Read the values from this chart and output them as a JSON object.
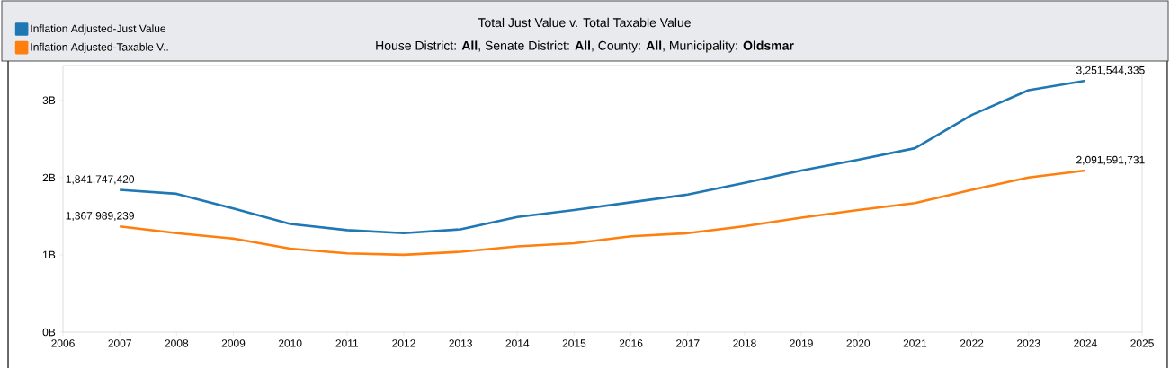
{
  "chart_data": {
    "type": "line",
    "title": "Total Just Value v. Total Taxable Value",
    "subtitle": "House District: **All**, Senate District: **All**, County: **All**, Municipality: **Oldsmar**",
    "x": [
      2007,
      2008,
      2009,
      2010,
      2011,
      2012,
      2013,
      2014,
      2015,
      2016,
      2017,
      2018,
      2019,
      2020,
      2021,
      2022,
      2023,
      2024
    ],
    "series": [
      {
        "name": "Inflation Adjusted-Just Value",
        "color": "#1f77b4",
        "values": [
          1841747420,
          1790000000,
          1600000000,
          1400000000,
          1320000000,
          1280000000,
          1330000000,
          1490000000,
          1580000000,
          1680000000,
          1780000000,
          1930000000,
          2090000000,
          2230000000,
          2380000000,
          2810000000,
          3130000000,
          3251544335
        ],
        "value_labels": [
          "1,841,747,420",
          null,
          null,
          null,
          null,
          null,
          null,
          null,
          null,
          null,
          null,
          null,
          null,
          null,
          null,
          null,
          null,
          "3,251,544,335"
        ]
      },
      {
        "name": "Inflation Adjusted-Taxable V..",
        "color": "#ff7f0e",
        "values": [
          1367989239,
          1280000000,
          1210000000,
          1080000000,
          1020000000,
          1000000000,
          1040000000,
          1110000000,
          1150000000,
          1240000000,
          1280000000,
          1370000000,
          1480000000,
          1580000000,
          1670000000,
          1840000000,
          2000000000,
          2091591731
        ],
        "value_labels": [
          "1,367,989,239",
          null,
          null,
          null,
          null,
          null,
          null,
          null,
          null,
          null,
          null,
          null,
          null,
          null,
          null,
          null,
          null,
          "2,091,591,731"
        ]
      }
    ],
    "xlim": [
      2006,
      2025
    ],
    "xticks": [
      2006,
      2007,
      2008,
      2009,
      2010,
      2011,
      2012,
      2013,
      2014,
      2015,
      2016,
      2017,
      2018,
      2019,
      2020,
      2021,
      2022,
      2023,
      2024,
      2025
    ],
    "ylim": [
      0,
      3450000000
    ],
    "yticks": [
      {
        "value": 0,
        "label": "0B"
      },
      {
        "value": 1000000000,
        "label": "1B"
      },
      {
        "value": 2000000000,
        "label": "2B"
      },
      {
        "value": 3000000000,
        "label": "3B"
      }
    ],
    "grid": false,
    "legend": "top left",
    "marker": "none",
    "line_style": "solid"
  }
}
